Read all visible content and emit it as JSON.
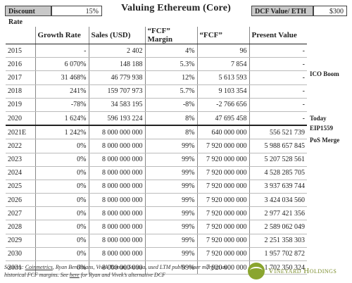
{
  "title": "Valuing Ethereum (Core)",
  "discount_rate": {
    "label": "Discount Rate",
    "value": "15%"
  },
  "dcf_value": {
    "label": "DCF Value/ ETH",
    "value": "$300"
  },
  "table": {
    "headers": [
      "",
      "Growth Rate",
      "Sales (USD)",
      "“FCF” Margin",
      "“FCF”",
      "Present Value"
    ],
    "rows": [
      [
        "2015",
        "-",
        "2 402",
        "4%",
        "96",
        "-"
      ],
      [
        "2016",
        "6 070%",
        "148 188",
        "5.3%",
        "7 854",
        "-"
      ],
      [
        "2017",
        "31 468%",
        "46 779 938",
        "12%",
        "5 613 593",
        "-"
      ],
      [
        "2018",
        "241%",
        "159 707 973",
        "5.7%",
        "9 103 354",
        "-"
      ],
      [
        "2019",
        "-78%",
        "34 583 195",
        "-8%",
        "-2 766 656",
        "-"
      ],
      [
        "2020",
        "1 624%",
        "596 193 224",
        "8%",
        "47 695 458",
        "-"
      ],
      [
        "2021E",
        "1 242%",
        "8 000 000 000",
        "8%",
        "640 000 000",
        "556 521 739"
      ],
      [
        "2022",
        "0%",
        "8 000 000 000",
        "99%",
        "7 920 000 000",
        "5 988 657 845"
      ],
      [
        "2023",
        "0%",
        "8 000 000 000",
        "99%",
        "7 920 000 000",
        "5 207 528 561"
      ],
      [
        "2024",
        "0%",
        "8 000 000 000",
        "99%",
        "7 920 000 000",
        "4 528 285 705"
      ],
      [
        "2025",
        "0%",
        "8 000 000 000",
        "99%",
        "7 920 000 000",
        "3 937 639 744"
      ],
      [
        "2026",
        "0%",
        "8 000 000 000",
        "99%",
        "7 920 000 000",
        "3 424 034 560"
      ],
      [
        "2027",
        "0%",
        "8 000 000 000",
        "99%",
        "7 920 000 000",
        "2 977 421 356"
      ],
      [
        "2028",
        "0%",
        "8 000 000 000",
        "99%",
        "7 920 000 000",
        "2 589 062 049"
      ],
      [
        "2029",
        "0%",
        "8 000 000 000",
        "99%",
        "7 920 000 000",
        "2 251 358 303"
      ],
      [
        "2030",
        "0%",
        "8 000 000 000",
        "99%",
        "7 920 000 000",
        "1 957 702 872"
      ],
      [
        "2031",
        "0%",
        "8 000 000 000",
        "99%",
        "7 920 000 000",
        "1 702 350 324"
      ]
    ]
  },
  "notes": {
    "ico_boom": "ICO Boom",
    "today": "Today",
    "eip1559": "EIP1559",
    "pos_merge": "PoS Merge"
  },
  "footer": {
    "source_prefix": "Sources: ",
    "coinmetrics": "Coinmetrics",
    "source_rest": ", Ryan Berckmans, Vivek Raman, Statista, used LTM public miner margins as historical FCF margins. See ",
    "here": "here",
    "source_end": " for Ryan and Vivek’s alternative DCF"
  },
  "logo": {
    "name": "Vineyard Holdings"
  }
}
